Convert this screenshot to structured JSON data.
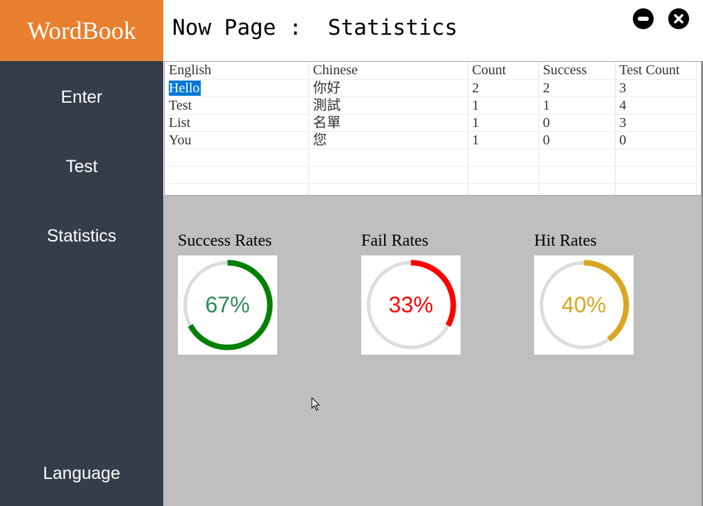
{
  "app": {
    "title": "WordBook",
    "accent": "#e8802f",
    "sidebar_bg": "#343d4a"
  },
  "sidebar": {
    "items": [
      {
        "label": "Enter"
      },
      {
        "label": "Test"
      },
      {
        "label": "Statistics"
      },
      {
        "label": "Language"
      }
    ]
  },
  "header": {
    "prefix": "Now Page :",
    "page": "Statistics",
    "minimize_icon": "minimize-icon",
    "close_icon": "close-icon"
  },
  "table": {
    "columns": [
      "English",
      "Chinese",
      "Count",
      "Success",
      "Test Count"
    ],
    "rows": [
      [
        "Hello",
        "你好",
        "2",
        "2",
        "3"
      ],
      [
        "Test",
        "測試",
        "1",
        "1",
        "4"
      ],
      [
        "List",
        "名單",
        "1",
        "0",
        "3"
      ],
      [
        "You",
        "您",
        "1",
        "0",
        "0"
      ]
    ],
    "selected_cell": "Hello"
  },
  "stats": [
    {
      "label": "Success Rates",
      "value": 0.67,
      "text": "67%",
      "ring": "#008000",
      "text_color": "#2e8b57"
    },
    {
      "label": "Fail Rates",
      "value": 0.33,
      "text": "33%",
      "ring": "#ff0000",
      "text_color": "#ff0000"
    },
    {
      "label": "Hit Rates",
      "value": 0.4,
      "text": "40%",
      "ring": "#daa520",
      "text_color": "#daa520"
    }
  ]
}
